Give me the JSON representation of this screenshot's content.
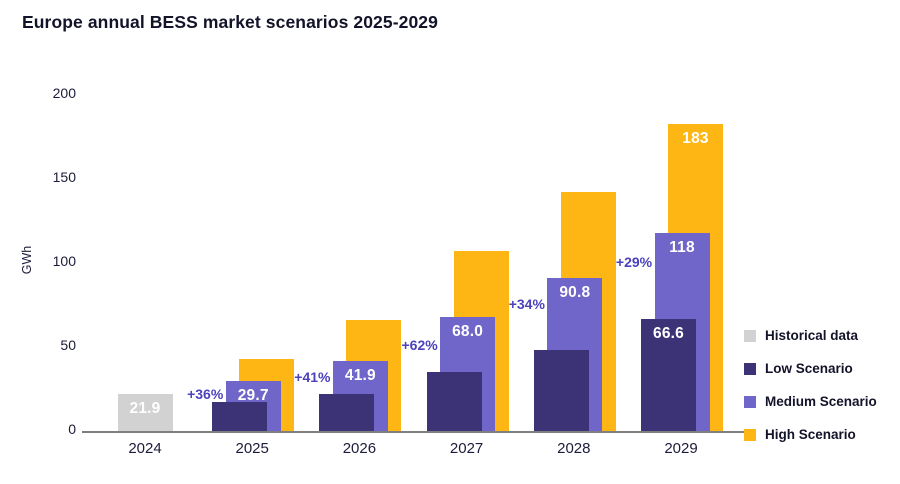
{
  "title": "Europe annual BESS market scenarios 2025-2029",
  "colors": {
    "historical": "#D2D2D2",
    "low": "#3C3377",
    "medium": "#7065C8",
    "high": "#FDB614",
    "text": "#131329",
    "annotation": "#4C42BC",
    "axis_line": "#7F7F7F",
    "bar_label": "#FFFFFF",
    "background": "#FFFFFF"
  },
  "chart_data": {
    "type": "bar",
    "title": "Europe annual BESS market scenarios 2025-2029",
    "ylabel": "GWh",
    "xlabel": "",
    "ylim": [
      0,
      200
    ],
    "yticks": [
      0,
      50,
      100,
      150,
      200
    ],
    "grid": false,
    "legend_position": "right",
    "categories": [
      "2024",
      "2025",
      "2026",
      "2027",
      "2028",
      "2029"
    ],
    "series": [
      {
        "name": "Historical data",
        "color": "#D2D2D2",
        "values": [
          21.9,
          null,
          null,
          null,
          null,
          null
        ],
        "labels": [
          "21.9",
          null,
          null,
          null,
          null,
          null
        ]
      },
      {
        "name": "Low Scenario",
        "color": "#3C3377",
        "values": [
          null,
          17,
          22,
          35,
          48,
          66.6
        ],
        "labels": [
          null,
          null,
          null,
          null,
          null,
          "66.6"
        ]
      },
      {
        "name": "Medium Scenario",
        "color": "#7065C8",
        "values": [
          null,
          29.7,
          41.9,
          68.0,
          90.8,
          118
        ],
        "labels": [
          null,
          "29.7",
          "41.9",
          "68.0",
          "90.8",
          "118"
        ]
      },
      {
        "name": "High Scenario",
        "color": "#FDB614",
        "values": [
          null,
          43,
          66,
          107,
          142,
          183
        ],
        "labels": [
          null,
          null,
          null,
          null,
          null,
          "183"
        ]
      }
    ],
    "annotations": [
      {
        "category": "2025",
        "label": "+36%"
      },
      {
        "category": "2026",
        "label": "+41%"
      },
      {
        "category": "2027",
        "label": "+62%"
      },
      {
        "category": "2028",
        "label": "+34%"
      },
      {
        "category": "2029",
        "label": "+29%"
      }
    ]
  },
  "legend": {
    "items": [
      {
        "label": "Historical data",
        "color": "#D2D2D2"
      },
      {
        "label": "Low Scenario",
        "color": "#3C3377"
      },
      {
        "label": "Medium Scenario",
        "color": "#7065C8"
      },
      {
        "label": "High Scenario",
        "color": "#FDB614"
      }
    ]
  }
}
